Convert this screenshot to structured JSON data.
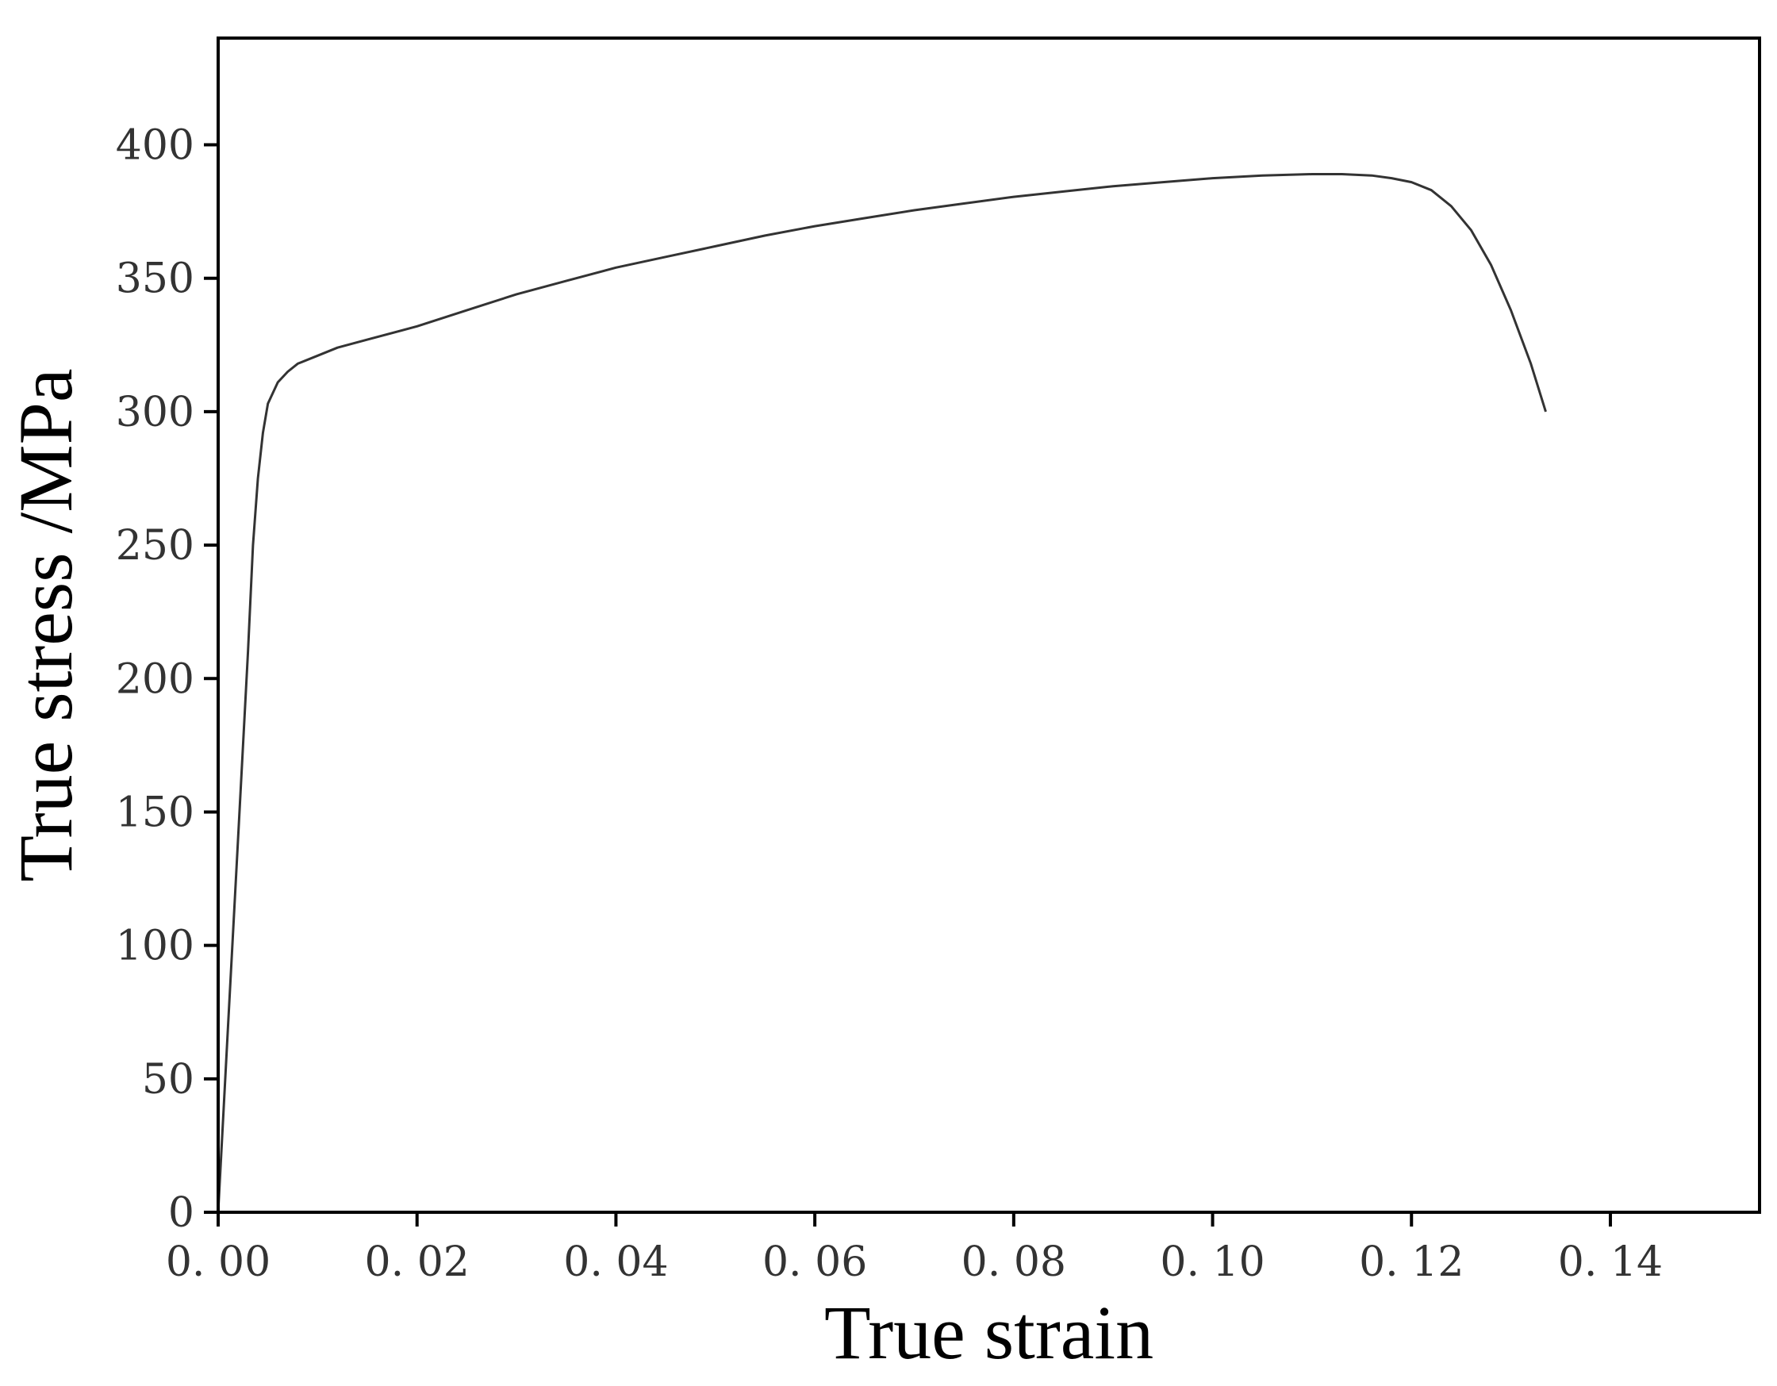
{
  "chart_data": {
    "type": "line",
    "title": "",
    "xlabel": "True strain",
    "ylabel": "True stress /MPa",
    "xlim": [
      0,
      0.155
    ],
    "ylim": [
      0,
      440
    ],
    "grid": false,
    "x_ticks": [
      0,
      0.02,
      0.04,
      0.06,
      0.08,
      0.1,
      0.12,
      0.14
    ],
    "x_tick_labels": [
      "0. 00",
      "0. 02",
      "0. 04",
      "0. 06",
      "0. 08",
      "0. 10",
      "0. 12",
      "0. 14"
    ],
    "y_ticks": [
      0,
      50,
      100,
      150,
      200,
      250,
      300,
      350,
      400
    ],
    "y_tick_labels": [
      "0",
      "50",
      "100",
      "150",
      "200",
      "250",
      "300",
      "350",
      "400"
    ],
    "series": [
      {
        "color": "#333333",
        "x": [
          0,
          0.001,
          0.002,
          0.003,
          0.0035,
          0.004,
          0.0045,
          0.005,
          0.006,
          0.007,
          0.008,
          0.01,
          0.012,
          0.015,
          0.02,
          0.025,
          0.03,
          0.035,
          0.04,
          0.045,
          0.05,
          0.055,
          0.06,
          0.065,
          0.07,
          0.075,
          0.08,
          0.085,
          0.09,
          0.095,
          0.1,
          0.105,
          0.11,
          0.113,
          0.116,
          0.118,
          0.12,
          0.122,
          0.124,
          0.126,
          0.128,
          0.13,
          0.132,
          0.1335
        ],
        "y": [
          0,
          70,
          140,
          210,
          250,
          275,
          292,
          303,
          311,
          315,
          318,
          321,
          324,
          327,
          332,
          338,
          344,
          349,
          354,
          358,
          362,
          366,
          369.5,
          372.5,
          375.5,
          378,
          380.5,
          382.5,
          384.5,
          386,
          387.5,
          388.5,
          389,
          389,
          388.5,
          387.5,
          386,
          383,
          377,
          368,
          355,
          338,
          318,
          300
        ]
      }
    ]
  }
}
